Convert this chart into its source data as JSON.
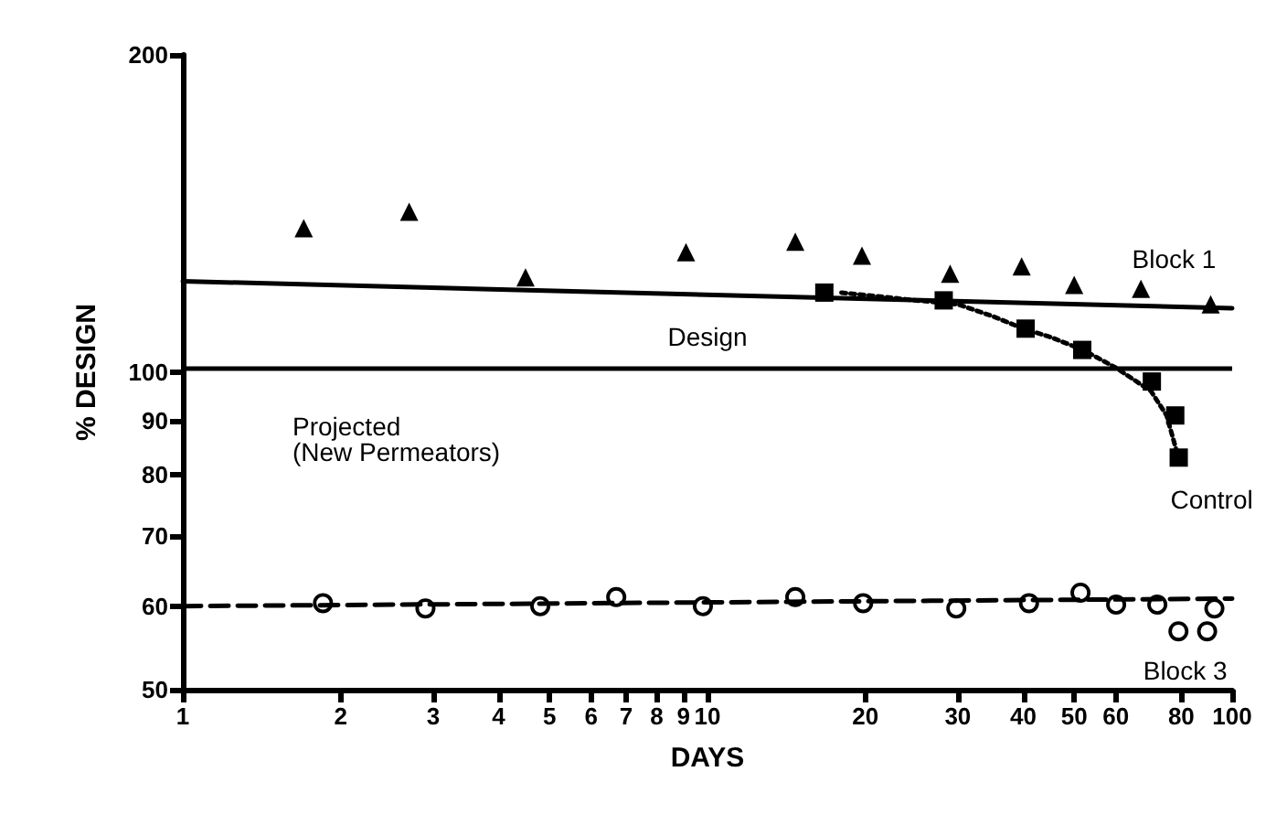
{
  "chart_data": {
    "type": "scatter",
    "xlabel": "DAYS",
    "ylabel": "% DESIGN",
    "log": "xy",
    "xlim": [
      1,
      100
    ],
    "ylim": [
      50,
      200
    ],
    "xticks": [
      1,
      2,
      3,
      4,
      5,
      6,
      7,
      8,
      9,
      10,
      20,
      30,
      40,
      50,
      60,
      80,
      100
    ],
    "yticks": [
      50,
      60,
      70,
      80,
      90,
      100,
      200
    ],
    "grid": false,
    "legend": false,
    "series": [
      {
        "name": "Block 1",
        "marker": "triangle",
        "color": "#000000",
        "x": [
          1.7,
          2.7,
          4.5,
          9.1,
          14.7,
          19.7,
          29,
          39.7,
          50,
          67,
          91
        ],
        "values": [
          137,
          142,
          123,
          130,
          133,
          129,
          124,
          126,
          121,
          120,
          116
        ]
      },
      {
        "type": "line",
        "marker": "none",
        "line_style": "solid",
        "color": "#000000",
        "x": [
          1,
          100
        ],
        "values": [
          122,
          115
        ]
      },
      {
        "name": "Control",
        "marker": "square",
        "color": "#000000",
        "x": [
          16.7,
          28.2,
          40.4,
          51.8,
          70.3,
          77.9,
          79.1
        ],
        "values": [
          119,
          117,
          110,
          105,
          98,
          91,
          83
        ]
      },
      {
        "type": "line",
        "marker": "none",
        "line_style": "dotted",
        "color": "#000000",
        "x": [
          18,
          25,
          30,
          35,
          40,
          45,
          52,
          60,
          70,
          75,
          79
        ],
        "values": [
          119,
          117,
          116,
          113,
          110,
          108,
          105,
          101,
          96,
          91,
          83
        ]
      },
      {
        "name": "Block 3",
        "marker": "circle",
        "color": "#000000",
        "x": [
          1.85,
          2.9,
          4.8,
          6.7,
          9.8,
          14.7,
          19.8,
          29.8,
          41,
          51.4,
          60.1,
          72,
          92.5,
          79,
          89.6
        ],
        "values": [
          60.4,
          59.7,
          60,
          61.2,
          60,
          61.2,
          60.4,
          59.7,
          60.4,
          61.8,
          60.2,
          60.2,
          59.7,
          56.8,
          56.8
        ]
      },
      {
        "type": "line",
        "marker": "none",
        "line_style": "dashed",
        "color": "#000000",
        "x": [
          1,
          100
        ],
        "values": [
          60,
          61
        ]
      }
    ],
    "ref_lines": [
      {
        "axis": "y",
        "value": 101,
        "label": "Design",
        "color": "#000000",
        "line_style": "solid"
      }
    ],
    "annotations": [
      "Projected\n(New Permeators)"
    ]
  }
}
